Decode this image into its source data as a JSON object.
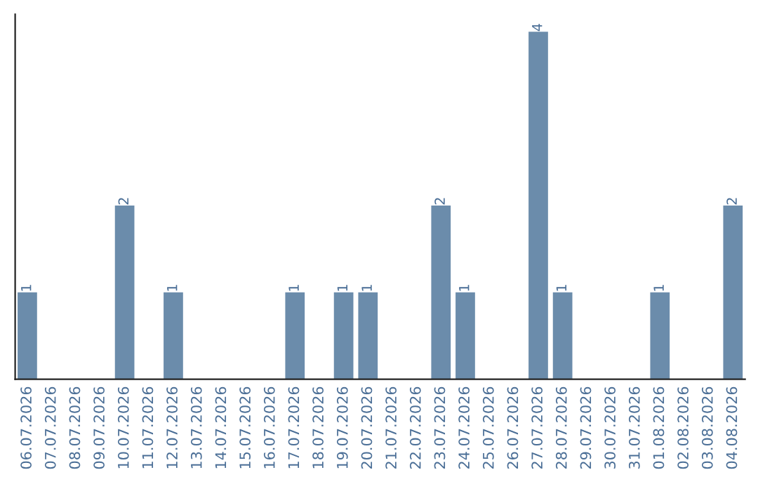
{
  "chart_data": {
    "type": "bar",
    "categories": [
      "06.07.2026",
      "07.07.2026",
      "08.07.2026",
      "09.07.2026",
      "10.07.2026",
      "11.07.2026",
      "12.07.2026",
      "13.07.2026",
      "14.07.2026",
      "15.07.2026",
      "16.07.2026",
      "17.07.2026",
      "18.07.2026",
      "19.07.2026",
      "20.07.2026",
      "21.07.2026",
      "22.07.2026",
      "23.07.2026",
      "24.07.2026",
      "25.07.2026",
      "26.07.2026",
      "27.07.2026",
      "28.07.2026",
      "29.07.2026",
      "30.07.2026",
      "31.07.2026",
      "01.08.2026",
      "02.08.2026",
      "03.08.2026",
      "04.08.2026"
    ],
    "values": [
      1,
      0,
      0,
      0,
      2,
      0,
      1,
      0,
      0,
      0,
      0,
      1,
      0,
      1,
      1,
      0,
      0,
      2,
      1,
      0,
      0,
      4,
      1,
      0,
      0,
      0,
      1,
      0,
      0,
      2
    ],
    "value_labels": [
      "1",
      null,
      null,
      null,
      "2",
      null,
      "1",
      null,
      null,
      null,
      null,
      "1",
      null,
      "1",
      "1",
      null,
      null,
      "2",
      "1",
      null,
      null,
      "4",
      "1",
      null,
      null,
      null,
      "1",
      null,
      null,
      "2"
    ],
    "color": "#6b8cab",
    "grid": false,
    "tick_labels": "x"
  }
}
